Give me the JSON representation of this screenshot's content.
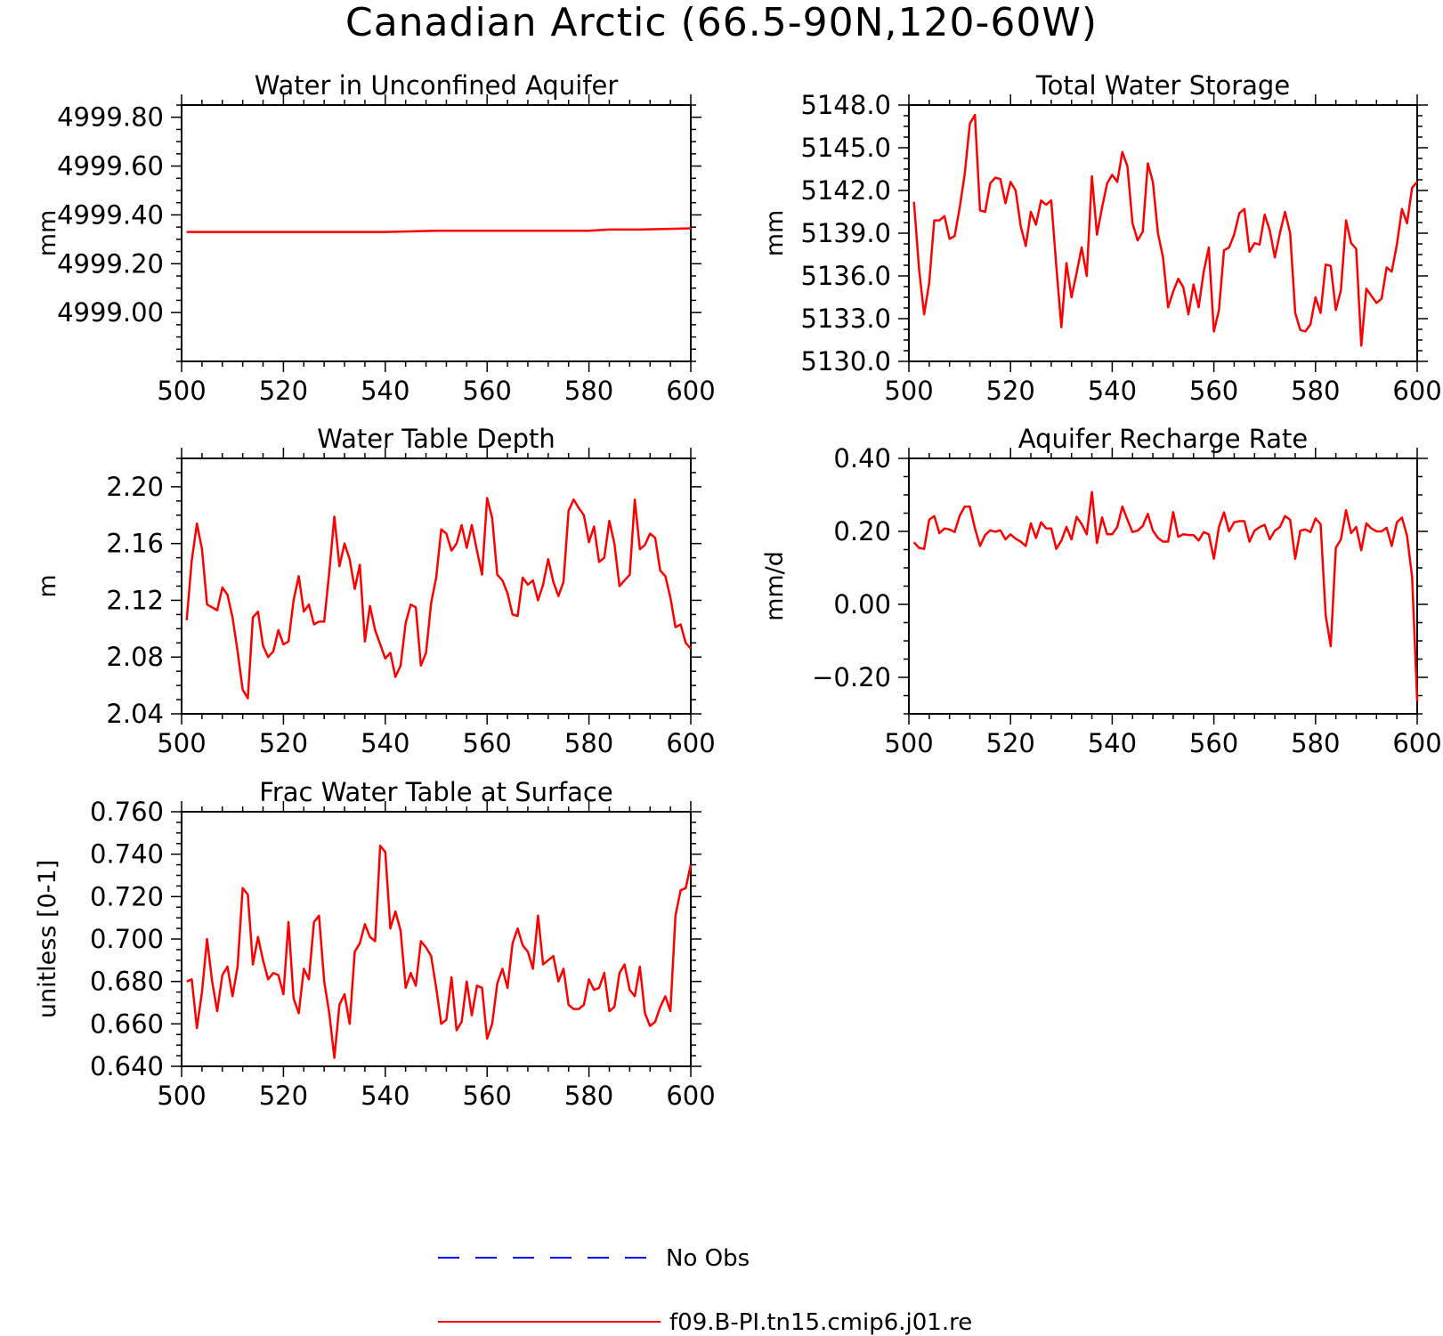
{
  "title": "Canadian Arctic (66.5-90N,120-60W)",
  "legend": [
    {
      "label": "No Obs",
      "color": "#0000ff",
      "dashed": true
    },
    {
      "label": "f09.B-PI.tn15.cmip6.j01.re",
      "color": "#ff0000",
      "dashed": false
    }
  ],
  "chart_data": [
    {
      "type": "line",
      "title": "Water in Unconfined Aquifer",
      "ylabel": "mm",
      "xlim": [
        500,
        600
      ],
      "ylim": [
        4998.8,
        4999.85
      ],
      "xticks": [
        500,
        520,
        540,
        560,
        580,
        600
      ],
      "xtick_labels": [
        "500",
        "520",
        "540",
        "560",
        "580",
        "600"
      ],
      "yticks": [
        4999.0,
        4999.2,
        4999.4,
        4999.6,
        4999.8
      ],
      "ytick_labels": [
        "4999.00",
        "4999.20",
        "4999.40",
        "4999.60",
        "4999.80"
      ],
      "series": [
        {
          "color": "#ff0000",
          "x": [
            501,
            510,
            520,
            530,
            540,
            550,
            560,
            570,
            580,
            584,
            590,
            600
          ],
          "y": [
            4999.33,
            4999.33,
            4999.33,
            4999.33,
            4999.33,
            4999.335,
            4999.335,
            4999.335,
            4999.335,
            4999.34,
            4999.34,
            4999.345
          ]
        }
      ]
    },
    {
      "type": "line",
      "title": "Total Water Storage",
      "ylabel": "mm",
      "xlim": [
        500,
        600
      ],
      "ylim": [
        5130.0,
        5148.0
      ],
      "xticks": [
        500,
        520,
        540,
        560,
        580,
        600
      ],
      "xtick_labels": [
        "500",
        "520",
        "540",
        "560",
        "580",
        "600"
      ],
      "yticks": [
        5130,
        5133,
        5136,
        5139,
        5142,
        5145,
        5148
      ],
      "ytick_labels": [
        "5130.0",
        "5133.0",
        "5136.0",
        "5139.0",
        "5142.0",
        "5145.0",
        "5148.0"
      ],
      "series": [
        {
          "color": "#ff0000",
          "x": [
            501,
            502,
            503,
            504,
            505,
            506,
            507,
            508,
            509,
            510,
            511,
            512,
            513,
            514,
            515,
            516,
            517,
            518,
            519,
            520,
            521,
            522,
            523,
            524,
            525,
            526,
            527,
            528,
            529,
            530,
            531,
            532,
            533,
            534,
            535,
            536,
            537,
            538,
            539,
            540,
            541,
            542,
            543,
            544,
            545,
            546,
            547,
            548,
            549,
            550,
            551,
            552,
            553,
            554,
            555,
            556,
            557,
            558,
            559,
            560,
            561,
            562,
            563,
            564,
            565,
            566,
            567,
            568,
            569,
            570,
            571,
            572,
            573,
            574,
            575,
            576,
            577,
            578,
            579,
            580,
            581,
            582,
            583,
            584,
            585,
            586,
            587,
            588,
            589,
            590,
            591,
            592,
            593,
            594,
            595,
            596,
            597,
            598,
            599,
            600
          ],
          "y": [
            5141.2,
            5136.5,
            5133.3,
            5135.5,
            5139.9,
            5139.9,
            5140.2,
            5138.6,
            5138.8,
            5140.8,
            5143.2,
            5146.7,
            5147.3,
            5140.6,
            5140.5,
            5142.5,
            5142.9,
            5142.8,
            5141.1,
            5142.6,
            5142.0,
            5139.5,
            5138.1,
            5140.5,
            5139.6,
            5141.3,
            5141.0,
            5141.3,
            5136.7,
            5132.4,
            5136.9,
            5134.5,
            5136.2,
            5138.0,
            5136.0,
            5143.0,
            5138.9,
            5140.8,
            5142.5,
            5143.1,
            5142.6,
            5144.7,
            5143.7,
            5139.7,
            5138.5,
            5139.1,
            5143.9,
            5142.6,
            5139.0,
            5137.3,
            5133.8,
            5134.9,
            5135.8,
            5135.2,
            5133.3,
            5135.4,
            5133.8,
            5136.3,
            5138.0,
            5132.1,
            5133.6,
            5137.8,
            5138.0,
            5138.9,
            5140.4,
            5140.7,
            5137.7,
            5138.3,
            5138.2,
            5140.3,
            5139.2,
            5137.3,
            5139.0,
            5140.5,
            5139.0,
            5133.4,
            5132.2,
            5132.1,
            5132.6,
            5134.5,
            5133.4,
            5136.8,
            5136.7,
            5133.6,
            5135.0,
            5139.9,
            5138.3,
            5137.9,
            5131.1,
            5135.1,
            5134.6,
            5134.1,
            5134.4,
            5136.6,
            5136.3,
            5138.2,
            5140.7,
            5139.7,
            5142.2,
            5142.6
          ]
        }
      ]
    },
    {
      "type": "line",
      "title": "Water Table Depth",
      "ylabel": "m",
      "xlim": [
        500,
        600
      ],
      "ylim": [
        2.04,
        2.22
      ],
      "xticks": [
        500,
        520,
        540,
        560,
        580,
        600
      ],
      "xtick_labels": [
        "500",
        "520",
        "540",
        "560",
        "580",
        "600"
      ],
      "yticks": [
        2.04,
        2.08,
        2.12,
        2.16,
        2.2
      ],
      "ytick_labels": [
        "2.04",
        "2.08",
        "2.12",
        "2.16",
        "2.20"
      ],
      "series": [
        {
          "color": "#ff0000",
          "x": [
            501,
            502,
            503,
            504,
            505,
            506,
            507,
            508,
            509,
            510,
            511,
            512,
            513,
            514,
            515,
            516,
            517,
            518,
            519,
            520,
            521,
            522,
            523,
            524,
            525,
            526,
            527,
            528,
            529,
            530,
            531,
            532,
            533,
            534,
            535,
            536,
            537,
            538,
            539,
            540,
            541,
            542,
            543,
            544,
            545,
            546,
            547,
            548,
            549,
            550,
            551,
            552,
            553,
            554,
            555,
            556,
            557,
            558,
            559,
            560,
            561,
            562,
            563,
            564,
            565,
            566,
            567,
            568,
            569,
            570,
            571,
            572,
            573,
            574,
            575,
            576,
            577,
            578,
            579,
            580,
            581,
            582,
            583,
            584,
            585,
            586,
            587,
            588,
            589,
            590,
            591,
            592,
            593,
            594,
            595,
            596,
            597,
            598,
            599,
            600
          ],
          "y": [
            2.106,
            2.148,
            2.174,
            2.156,
            2.117,
            2.115,
            2.113,
            2.129,
            2.124,
            2.108,
            2.084,
            2.057,
            2.051,
            2.108,
            2.112,
            2.088,
            2.08,
            2.084,
            2.099,
            2.089,
            2.091,
            2.12,
            2.137,
            2.112,
            2.117,
            2.103,
            2.105,
            2.105,
            2.14,
            2.179,
            2.144,
            2.16,
            2.149,
            2.128,
            2.145,
            2.091,
            2.116,
            2.099,
            2.089,
            2.079,
            2.083,
            2.066,
            2.074,
            2.104,
            2.117,
            2.115,
            2.074,
            2.083,
            2.118,
            2.136,
            2.17,
            2.167,
            2.155,
            2.16,
            2.173,
            2.157,
            2.173,
            2.155,
            2.138,
            2.192,
            2.178,
            2.138,
            2.134,
            2.125,
            2.11,
            2.109,
            2.136,
            2.131,
            2.134,
            2.12,
            2.131,
            2.149,
            2.133,
            2.123,
            2.133,
            2.183,
            2.191,
            2.185,
            2.18,
            2.161,
            2.172,
            2.147,
            2.15,
            2.176,
            2.16,
            2.13,
            2.134,
            2.138,
            2.191,
            2.156,
            2.159,
            2.167,
            2.164,
            2.141,
            2.137,
            2.122,
            2.101,
            2.103,
            2.09,
            2.086
          ]
        }
      ]
    },
    {
      "type": "line",
      "title": "Aquifer Recharge Rate",
      "ylabel": "mm/d",
      "xlim": [
        500,
        600
      ],
      "ylim": [
        -0.3,
        0.4
      ],
      "xticks": [
        500,
        520,
        540,
        560,
        580,
        600
      ],
      "xtick_labels": [
        "500",
        "520",
        "540",
        "560",
        "580",
        "600"
      ],
      "yticks": [
        -0.2,
        0.0,
        0.2,
        0.4
      ],
      "ytick_labels": [
        "−0.20",
        "0.00",
        "0.20",
        "0.40"
      ],
      "series": [
        {
          "color": "#ff0000",
          "x": [
            501,
            502,
            503,
            504,
            505,
            506,
            507,
            508,
            509,
            510,
            511,
            512,
            513,
            514,
            515,
            516,
            517,
            518,
            519,
            520,
            521,
            522,
            523,
            524,
            525,
            526,
            527,
            528,
            529,
            530,
            531,
            532,
            533,
            534,
            535,
            536,
            537,
            538,
            539,
            540,
            541,
            542,
            543,
            544,
            545,
            546,
            547,
            548,
            549,
            550,
            551,
            552,
            553,
            554,
            555,
            556,
            557,
            558,
            559,
            560,
            561,
            562,
            563,
            564,
            565,
            566,
            567,
            568,
            569,
            570,
            571,
            572,
            573,
            574,
            575,
            576,
            577,
            578,
            579,
            580,
            581,
            582,
            583,
            584,
            585,
            586,
            587,
            588,
            589,
            590,
            591,
            592,
            593,
            594,
            595,
            596,
            597,
            598,
            599,
            600
          ],
          "y": [
            0.17,
            0.155,
            0.152,
            0.232,
            0.242,
            0.195,
            0.208,
            0.205,
            0.198,
            0.243,
            0.268,
            0.268,
            0.208,
            0.16,
            0.19,
            0.203,
            0.199,
            0.203,
            0.178,
            0.192,
            0.18,
            0.172,
            0.16,
            0.222,
            0.182,
            0.225,
            0.208,
            0.208,
            0.152,
            0.175,
            0.212,
            0.178,
            0.24,
            0.22,
            0.192,
            0.308,
            0.168,
            0.238,
            0.192,
            0.192,
            0.212,
            0.268,
            0.232,
            0.198,
            0.202,
            0.215,
            0.248,
            0.202,
            0.182,
            0.172,
            0.172,
            0.253,
            0.185,
            0.192,
            0.19,
            0.19,
            0.175,
            0.198,
            0.192,
            0.125,
            0.212,
            0.252,
            0.2,
            0.225,
            0.228,
            0.228,
            0.172,
            0.202,
            0.212,
            0.218,
            0.178,
            0.202,
            0.212,
            0.242,
            0.232,
            0.125,
            0.202,
            0.205,
            0.198,
            0.235,
            0.22,
            -0.03,
            -0.115,
            0.155,
            0.178,
            0.258,
            0.195,
            0.212,
            0.148,
            0.222,
            0.208,
            0.2,
            0.2,
            0.21,
            0.16,
            0.225,
            0.238,
            0.188,
            0.075,
            -0.265
          ]
        }
      ]
    },
    {
      "type": "line",
      "title": "Frac Water Table at Surface",
      "ylabel": "unitless [0-1]",
      "xlim": [
        500,
        600
      ],
      "ylim": [
        0.64,
        0.76
      ],
      "xticks": [
        500,
        520,
        540,
        560,
        580,
        600
      ],
      "xtick_labels": [
        "500",
        "520",
        "540",
        "560",
        "580",
        "600"
      ],
      "yticks": [
        0.64,
        0.66,
        0.68,
        0.7,
        0.72,
        0.74,
        0.76
      ],
      "ytick_labels": [
        "0.640",
        "0.660",
        "0.680",
        "0.700",
        "0.720",
        "0.740",
        "0.760"
      ],
      "series": [
        {
          "color": "#ff0000",
          "x": [
            501,
            502,
            503,
            504,
            505,
            506,
            507,
            508,
            509,
            510,
            511,
            512,
            513,
            514,
            515,
            516,
            517,
            518,
            519,
            520,
            521,
            522,
            523,
            524,
            525,
            526,
            527,
            528,
            529,
            530,
            531,
            532,
            533,
            534,
            535,
            536,
            537,
            538,
            539,
            540,
            541,
            542,
            543,
            544,
            545,
            546,
            547,
            548,
            549,
            550,
            551,
            552,
            553,
            554,
            555,
            556,
            557,
            558,
            559,
            560,
            561,
            562,
            563,
            564,
            565,
            566,
            567,
            568,
            569,
            570,
            571,
            572,
            573,
            574,
            575,
            576,
            577,
            578,
            579,
            580,
            581,
            582,
            583,
            584,
            585,
            586,
            587,
            588,
            589,
            590,
            591,
            592,
            593,
            594,
            595,
            596,
            597,
            598,
            599,
            600
          ],
          "y": [
            0.68,
            0.681,
            0.658,
            0.675,
            0.7,
            0.68,
            0.666,
            0.683,
            0.687,
            0.673,
            0.687,
            0.724,
            0.721,
            0.688,
            0.701,
            0.69,
            0.681,
            0.684,
            0.683,
            0.674,
            0.708,
            0.672,
            0.665,
            0.686,
            0.681,
            0.708,
            0.711,
            0.68,
            0.665,
            0.644,
            0.669,
            0.674,
            0.66,
            0.694,
            0.698,
            0.707,
            0.701,
            0.699,
            0.744,
            0.741,
            0.705,
            0.713,
            0.704,
            0.677,
            0.684,
            0.678,
            0.699,
            0.696,
            0.692,
            0.677,
            0.66,
            0.662,
            0.682,
            0.657,
            0.661,
            0.68,
            0.664,
            0.678,
            0.677,
            0.653,
            0.66,
            0.679,
            0.686,
            0.677,
            0.698,
            0.705,
            0.697,
            0.694,
            0.686,
            0.711,
            0.688,
            0.69,
            0.692,
            0.68,
            0.686,
            0.669,
            0.667,
            0.667,
            0.669,
            0.681,
            0.676,
            0.677,
            0.684,
            0.666,
            0.668,
            0.684,
            0.688,
            0.676,
            0.673,
            0.687,
            0.665,
            0.659,
            0.661,
            0.668,
            0.673,
            0.666,
            0.711,
            0.723,
            0.724,
            0.735
          ]
        }
      ]
    }
  ]
}
